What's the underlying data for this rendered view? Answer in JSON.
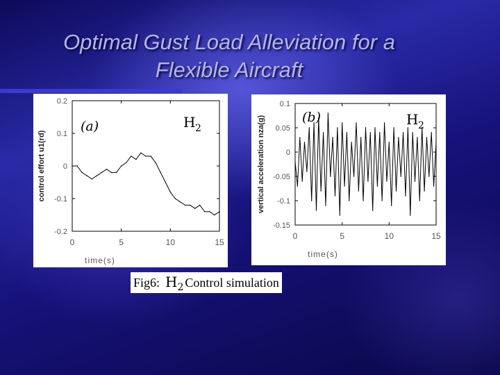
{
  "slide": {
    "title_line1": "Optimal Gust Load Alleviation for a",
    "title_line2": "Flexible Aircraft",
    "caption_prefix": "Fig6:",
    "caption_h": "H",
    "caption_sub": "2",
    "caption_suffix": "Control simulation"
  },
  "colors": {
    "accent": "#b4b4f0",
    "background": "#1a1890",
    "line": "#000000"
  },
  "chart_data": [
    {
      "type": "line",
      "panel_label": "(a)",
      "controller_label": "H",
      "controller_sub": "2",
      "xlabel": "time(s)",
      "ylabel": "control effort u1(rd)",
      "xlim": [
        0,
        15
      ],
      "ylim": [
        -0.2,
        0.2
      ],
      "xticks": [
        0,
        5,
        10,
        15
      ],
      "yticks": [
        0.2,
        0.1,
        0,
        -0.1,
        -0.2
      ],
      "ytick_labels": [
        "0.2",
        "0.1",
        "0",
        "-0.1",
        "-0.2"
      ],
      "x": [
        0,
        0.5,
        1,
        1.5,
        2,
        2.5,
        3,
        3.5,
        4,
        4.5,
        5,
        5.5,
        6,
        6.5,
        7,
        7.5,
        8,
        8.5,
        9,
        9.5,
        10,
        10.5,
        11,
        11.5,
        12,
        12.5,
        13,
        13.5,
        14,
        14.5,
        15
      ],
      "values": [
        0.0,
        0.0,
        -0.02,
        -0.03,
        -0.04,
        -0.03,
        -0.02,
        -0.01,
        -0.02,
        -0.02,
        0.0,
        0.01,
        0.03,
        0.02,
        0.04,
        0.03,
        0.03,
        0.01,
        -0.02,
        -0.05,
        -0.08,
        -0.1,
        -0.11,
        -0.12,
        -0.12,
        -0.13,
        -0.12,
        -0.14,
        -0.14,
        -0.15,
        -0.14
      ]
    },
    {
      "type": "line",
      "panel_label": "(b)",
      "controller_label": "H",
      "controller_sub": "2",
      "xlabel": "time(s)",
      "ylabel": "vertical acceleration nza(g)",
      "xlim": [
        0,
        15
      ],
      "ylim": [
        -0.15,
        0.1
      ],
      "xticks": [
        0,
        5,
        10,
        15
      ],
      "yticks": [
        0.1,
        0.05,
        0,
        -0.05,
        -0.1,
        -0.15
      ],
      "ytick_labels": [
        "0.1",
        "0.05",
        "0",
        "-0.05",
        "-0.1",
        "-0.15"
      ],
      "x": [
        0,
        0.25,
        0.5,
        0.75,
        1,
        1.25,
        1.5,
        1.75,
        2,
        2.25,
        2.5,
        2.75,
        3,
        3.25,
        3.5,
        3.75,
        4,
        4.25,
        4.5,
        4.75,
        5,
        5.25,
        5.5,
        5.75,
        6,
        6.25,
        6.5,
        6.75,
        7,
        7.25,
        7.5,
        7.75,
        8,
        8.25,
        8.5,
        8.75,
        9,
        9.25,
        9.5,
        9.75,
        10,
        10.25,
        10.5,
        10.75,
        11,
        11.25,
        11.5,
        11.75,
        12,
        12.25,
        12.5,
        12.75,
        13,
        13.25,
        13.5,
        13.75,
        14,
        14.25,
        14.5,
        14.75,
        15
      ],
      "values": [
        -0.02,
        -0.07,
        0.03,
        -0.06,
        0.02,
        -0.04,
        0.05,
        -0.1,
        0.06,
        -0.12,
        0.07,
        -0.08,
        0.04,
        -0.11,
        0.08,
        -0.05,
        0.03,
        -0.09,
        0.05,
        -0.13,
        0.06,
        -0.07,
        0.04,
        -0.1,
        0.02,
        -0.05,
        0.06,
        -0.08,
        0.03,
        -0.1,
        0.05,
        -0.06,
        0.04,
        -0.12,
        0.05,
        -0.07,
        0.04,
        -0.1,
        0.06,
        -0.06,
        0.02,
        -0.11,
        0.05,
        -0.08,
        0.03,
        -0.05,
        0.04,
        -0.09,
        0.05,
        -0.13,
        0.04,
        -0.06,
        0.03,
        -0.1,
        0.05,
        -0.08,
        0.03,
        -0.05,
        0.04,
        -0.07,
        0.02
      ]
    }
  ]
}
